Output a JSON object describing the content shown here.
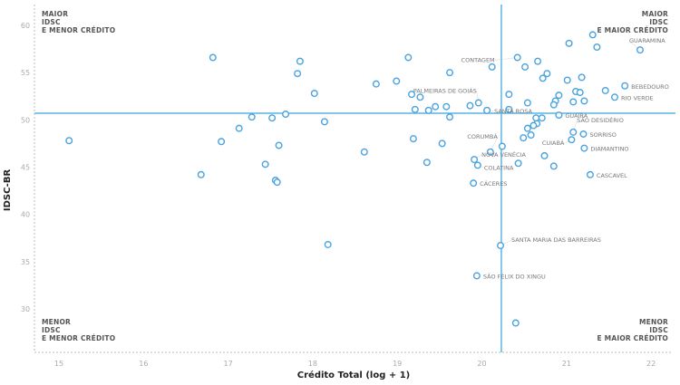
{
  "chart_data": {
    "type": "scatter",
    "title": "",
    "xlabel": "Crédito Total (log + 1)",
    "ylabel": "IDSC-BR",
    "xlim": [
      14.7,
      22.2
    ],
    "ylim": [
      25,
      61
    ],
    "xticks": [
      "15",
      "16",
      "17",
      "18",
      "19",
      "20",
      "21",
      "22"
    ],
    "yticks": [
      "60",
      "55",
      "50",
      "45",
      "40",
      "35",
      "30"
    ],
    "reference_lines": {
      "x": 20.23,
      "y": 50.7
    },
    "grid": false,
    "quadrant_labels": {
      "top_left": [
        "MAIOR",
        "IDSC",
        "E MENOR CRÉDITO"
      ],
      "top_right": [
        "MAIOR",
        "IDSC",
        "E MAIOR CRÉDITO"
      ],
      "bottom_left": [
        "MENOR",
        "IDSC",
        "E MENOR CRÉDITO"
      ],
      "bottom_right": [
        "MENOR",
        "IDSC",
        "E MAIOR CRÉDITO"
      ]
    },
    "colors": {
      "point": "#4aa3df",
      "refline": "#5ab4e5"
    },
    "points": [
      {
        "x": 15.12,
        "y": 47.8
      },
      {
        "x": 16.82,
        "y": 56.6
      },
      {
        "x": 17.85,
        "y": 56.2
      },
      {
        "x": 17.82,
        "y": 54.9
      },
      {
        "x": 18.02,
        "y": 52.8
      },
      {
        "x": 17.28,
        "y": 50.3
      },
      {
        "x": 17.52,
        "y": 50.2
      },
      {
        "x": 17.68,
        "y": 50.6
      },
      {
        "x": 18.14,
        "y": 49.8
      },
      {
        "x": 17.13,
        "y": 49.1
      },
      {
        "x": 16.92,
        "y": 47.7
      },
      {
        "x": 17.6,
        "y": 47.3
      },
      {
        "x": 17.44,
        "y": 45.3
      },
      {
        "x": 16.68,
        "y": 44.2
      },
      {
        "x": 17.56,
        "y": 43.6
      },
      {
        "x": 17.58,
        "y": 43.4
      },
      {
        "x": 18.18,
        "y": 36.8
      },
      {
        "x": 19.13,
        "y": 56.6
      },
      {
        "x": 20.12,
        "y": 55.6
      },
      {
        "x": 20.42,
        "y": 56.6,
        "label": "CONTAGEM"
      },
      {
        "x": 20.51,
        "y": 55.6
      },
      {
        "x": 20.66,
        "y": 56.2
      },
      {
        "x": 19.62,
        "y": 55.0
      },
      {
        "x": 18.75,
        "y": 53.8
      },
      {
        "x": 18.99,
        "y": 54.1
      },
      {
        "x": 20.72,
        "y": 54.4
      },
      {
        "x": 20.77,
        "y": 54.9
      },
      {
        "x": 21.03,
        "y": 58.1
      },
      {
        "x": 21.31,
        "y": 59.0
      },
      {
        "x": 21.36,
        "y": 57.7
      },
      {
        "x": 21.87,
        "y": 57.4,
        "label": "GUARAMINA"
      },
      {
        "x": 21.01,
        "y": 54.2
      },
      {
        "x": 21.18,
        "y": 54.5
      },
      {
        "x": 21.46,
        "y": 53.1
      },
      {
        "x": 21.69,
        "y": 53.6,
        "label": "BEBEDOURO"
      },
      {
        "x": 21.57,
        "y": 52.4,
        "label": "RIO VERDE"
      },
      {
        "x": 21.11,
        "y": 53.0
      },
      {
        "x": 21.16,
        "y": 52.9
      },
      {
        "x": 20.91,
        "y": 52.6
      },
      {
        "x": 20.87,
        "y": 52.0
      },
      {
        "x": 20.85,
        "y": 51.6
      },
      {
        "x": 21.08,
        "y": 51.9
      },
      {
        "x": 21.21,
        "y": 52.0
      },
      {
        "x": 20.54,
        "y": 51.8
      },
      {
        "x": 19.17,
        "y": 52.7
      },
      {
        "x": 19.27,
        "y": 52.4
      },
      {
        "x": 19.96,
        "y": 51.8,
        "label": "PALMEIRAS DE GOIÁS"
      },
      {
        "x": 20.32,
        "y": 52.7
      },
      {
        "x": 19.21,
        "y": 51.1
      },
      {
        "x": 19.37,
        "y": 51.0
      },
      {
        "x": 19.45,
        "y": 51.4
      },
      {
        "x": 19.58,
        "y": 51.4
      },
      {
        "x": 19.86,
        "y": 51.5
      },
      {
        "x": 20.06,
        "y": 51.0,
        "label": "SANTA ROSA"
      },
      {
        "x": 20.32,
        "y": 51.1
      },
      {
        "x": 19.62,
        "y": 50.3
      },
      {
        "x": 20.91,
        "y": 50.5,
        "label": "GUAÍRA"
      },
      {
        "x": 20.64,
        "y": 50.2
      },
      {
        "x": 20.71,
        "y": 50.2
      },
      {
        "x": 20.65,
        "y": 49.6
      },
      {
        "x": 20.61,
        "y": 49.4
      },
      {
        "x": 20.54,
        "y": 49.1
      },
      {
        "x": 20.58,
        "y": 48.4
      },
      {
        "x": 20.49,
        "y": 48.1
      },
      {
        "x": 21.08,
        "y": 48.7,
        "label": "SÃO DESIDÉRIO"
      },
      {
        "x": 21.2,
        "y": 48.5,
        "label": "SORRISO"
      },
      {
        "x": 21.06,
        "y": 47.9,
        "label": "CUIABÁ"
      },
      {
        "x": 21.21,
        "y": 47.0,
        "label": "DIAMANTINO"
      },
      {
        "x": 21.28,
        "y": 44.2,
        "label": "CASCAVEL"
      },
      {
        "x": 20.74,
        "y": 46.2
      },
      {
        "x": 20.85,
        "y": 45.1
      },
      {
        "x": 20.43,
        "y": 45.4
      },
      {
        "x": 20.24,
        "y": 47.2
      },
      {
        "x": 20.1,
        "y": 46.6,
        "label": "CORUMBÁ"
      },
      {
        "x": 19.91,
        "y": 45.8,
        "label": "NOVA VENÉCIA"
      },
      {
        "x": 19.95,
        "y": 45.2,
        "label": "COLATINA"
      },
      {
        "x": 19.9,
        "y": 43.3,
        "label": "CÁCERES"
      },
      {
        "x": 19.19,
        "y": 48.0
      },
      {
        "x": 19.53,
        "y": 47.5
      },
      {
        "x": 19.35,
        "y": 45.5
      },
      {
        "x": 18.61,
        "y": 46.6
      },
      {
        "x": 20.22,
        "y": 36.7,
        "label": "SANTA MARIA DAS BARREIRAS"
      },
      {
        "x": 19.94,
        "y": 33.5,
        "label": "SÃO FÉLIX DO XINGU"
      },
      {
        "x": 20.4,
        "y": 28.5
      }
    ]
  }
}
